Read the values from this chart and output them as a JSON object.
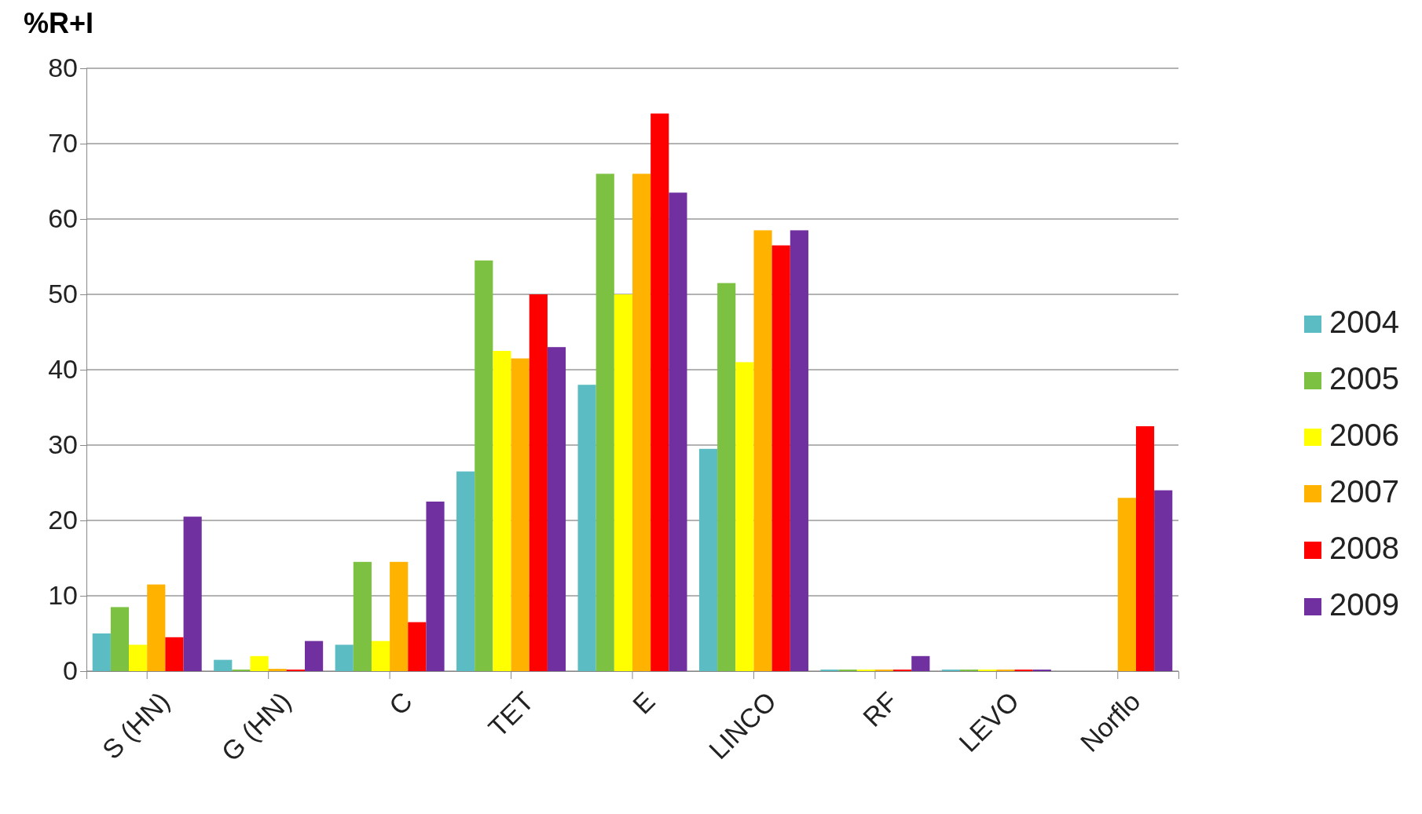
{
  "chart_data": {
    "type": "bar",
    "ylabel": "%R+I",
    "categories": [
      "S (HN)",
      "G (HN)",
      "C",
      "TET",
      "E",
      "LINCO",
      "RF",
      "LEVO",
      "Norflo"
    ],
    "series": [
      {
        "name": "2004",
        "color": "#5bbcc4",
        "values": [
          5,
          1.5,
          3.5,
          26.5,
          38,
          29.5,
          0,
          0,
          null
        ]
      },
      {
        "name": "2005",
        "color": "#7cc142",
        "values": [
          8.5,
          0,
          14.5,
          54.5,
          66,
          51.5,
          0,
          0,
          null
        ]
      },
      {
        "name": "2006",
        "color": "#ffff00",
        "values": [
          3.5,
          2,
          4,
          42.5,
          50,
          41,
          0,
          0,
          null
        ]
      },
      {
        "name": "2007",
        "color": "#ffb300",
        "values": [
          11.5,
          0.3,
          14.5,
          41.5,
          66,
          58.5,
          0,
          0,
          23
        ]
      },
      {
        "name": "2008",
        "color": "#ff0000",
        "values": [
          4.5,
          0.2,
          6.5,
          50,
          74,
          56.5,
          0,
          0,
          32.5
        ]
      },
      {
        "name": "2009",
        "color": "#7030a0",
        "values": [
          20.5,
          4,
          22.5,
          43,
          63.5,
          58.5,
          2,
          0,
          24
        ]
      }
    ],
    "ylim": [
      0,
      80
    ],
    "yticks": [
      0,
      10,
      20,
      30,
      40,
      50,
      60,
      70,
      80
    ],
    "grid": "y",
    "legend": "right"
  }
}
